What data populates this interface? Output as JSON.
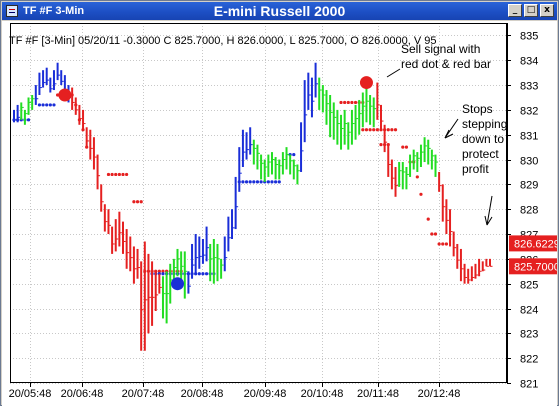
{
  "window": {
    "tab_title": "TF #F 3-Min",
    "chart_title": "E-mini Russell 2000",
    "min_glyph": "_",
    "max_glyph": "□",
    "close_glyph": "x"
  },
  "info_line": "TF #F [3-Min] 05/20/11  -0.3000 C 825.7000, H 826.0000, L 825.7000, O 826.0000, V 95",
  "annotations": {
    "sell_signal": [
      "Sell signal with",
      "red dot & red bar"
    ],
    "stops": [
      "Stops",
      "stepping",
      "down to",
      "protect",
      "profit"
    ]
  },
  "price_tags": [
    {
      "label": "826.6229",
      "value": 826.6229,
      "color": "#e52020"
    },
    {
      "label": "825.7000",
      "value": 825.7,
      "color": "#e52020"
    }
  ],
  "colors": {
    "up": "#22dd22",
    "down": "#e52020",
    "neutral": "#1a2ed8"
  },
  "chart_data": {
    "type": "bar",
    "y_ticks": [
      821,
      822,
      823,
      824,
      825,
      826,
      827,
      828,
      829,
      830,
      831,
      832,
      833,
      834,
      835
    ],
    "ylim": [
      821,
      835.5
    ],
    "x_ticks": [
      "20/05:48",
      "20/06:48",
      "20/07:48",
      "20/08:48",
      "20/09:48",
      "20/10:48",
      "20/11:48",
      "20/12:48"
    ],
    "bars": [
      [
        832.0,
        831.5,
        "n"
      ],
      [
        832.2,
        831.5,
        "n"
      ],
      [
        832.3,
        831.6,
        "g"
      ],
      [
        832.0,
        831.4,
        "g"
      ],
      [
        832.5,
        831.8,
        "g"
      ],
      [
        832.6,
        832.0,
        "g"
      ],
      [
        833.0,
        832.2,
        "b"
      ],
      [
        833.5,
        832.6,
        "b"
      ],
      [
        833.6,
        832.9,
        "b"
      ],
      [
        833.7,
        833.0,
        "b"
      ],
      [
        833.3,
        832.7,
        "b"
      ],
      [
        833.6,
        832.8,
        "b"
      ],
      [
        833.9,
        833.2,
        "b"
      ],
      [
        833.6,
        833.0,
        "b"
      ],
      [
        833.4,
        832.5,
        "b"
      ],
      [
        833.0,
        832.3,
        "b"
      ],
      [
        832.9,
        832.0,
        "r"
      ],
      [
        832.5,
        831.8,
        "r"
      ],
      [
        832.2,
        831.4,
        "r"
      ],
      [
        832.0,
        831.2,
        "r"
      ],
      [
        831.3,
        830.5,
        "r"
      ],
      [
        831.2,
        830.0,
        "r"
      ],
      [
        830.9,
        829.6,
        "r"
      ],
      [
        830.2,
        828.8,
        "r"
      ],
      [
        829.0,
        827.9,
        "r"
      ],
      [
        828.2,
        827.1,
        "r"
      ],
      [
        828.0,
        827.0,
        "r"
      ],
      [
        827.3,
        826.2,
        "r"
      ],
      [
        827.6,
        826.3,
        "r"
      ],
      [
        827.9,
        826.5,
        "r"
      ],
      [
        827.5,
        826.2,
        "r"
      ],
      [
        827.2,
        825.6,
        "r"
      ],
      [
        826.9,
        825.5,
        "r"
      ],
      [
        826.5,
        825.0,
        "r"
      ],
      [
        826.4,
        825.2,
        "r"
      ],
      [
        825.9,
        822.3,
        "r"
      ],
      [
        826.7,
        822.3,
        "r"
      ],
      [
        826.2,
        823.0,
        "r"
      ],
      [
        825.9,
        823.3,
        "r"
      ],
      [
        825.5,
        823.9,
        "r"
      ],
      [
        825.4,
        824.6,
        "r"
      ],
      [
        825.3,
        823.6,
        "g"
      ],
      [
        825.5,
        823.4,
        "g"
      ],
      [
        825.8,
        824.2,
        "g"
      ],
      [
        826.0,
        825.0,
        "g"
      ],
      [
        826.4,
        825.3,
        "g"
      ],
      [
        826.3,
        824.8,
        "g"
      ],
      [
        826.3,
        824.4,
        "g"
      ],
      [
        825.5,
        824.6,
        "b"
      ],
      [
        826.6,
        825.2,
        "b"
      ],
      [
        827.0,
        825.4,
        "b"
      ],
      [
        826.9,
        825.6,
        "b"
      ],
      [
        826.8,
        825.8,
        "b"
      ],
      [
        827.3,
        825.9,
        "b"
      ],
      [
        826.6,
        825.1,
        "g"
      ],
      [
        826.8,
        825.0,
        "g"
      ],
      [
        826.6,
        825.1,
        "g"
      ],
      [
        826.0,
        825.2,
        "g"
      ],
      [
        826.9,
        825.5,
        "b"
      ],
      [
        827.7,
        826.3,
        "b"
      ],
      [
        828.0,
        826.8,
        "b"
      ],
      [
        829.3,
        827.2,
        "b"
      ],
      [
        830.5,
        828.7,
        "b"
      ],
      [
        831.2,
        829.7,
        "b"
      ],
      [
        831.1,
        830.0,
        "b"
      ],
      [
        831.3,
        830.2,
        "b"
      ],
      [
        830.8,
        829.8,
        "g"
      ],
      [
        830.6,
        829.6,
        "g"
      ],
      [
        830.2,
        829.2,
        "g"
      ],
      [
        830.0,
        829.1,
        "g"
      ],
      [
        830.2,
        829.3,
        "g"
      ],
      [
        830.3,
        829.4,
        "g"
      ],
      [
        830.1,
        829.2,
        "g"
      ],
      [
        830.0,
        829.2,
        "g"
      ],
      [
        830.3,
        829.4,
        "g"
      ],
      [
        830.5,
        829.6,
        "g"
      ],
      [
        830.2,
        829.4,
        "g"
      ],
      [
        830.0,
        829.2,
        "g"
      ],
      [
        829.8,
        829.0,
        "g"
      ],
      [
        831.5,
        829.5,
        "b"
      ],
      [
        833.2,
        830.7,
        "b"
      ],
      [
        833.5,
        832.0,
        "b"
      ],
      [
        833.3,
        831.7,
        "b"
      ],
      [
        833.9,
        832.5,
        "b"
      ],
      [
        833.3,
        832.0,
        "g"
      ],
      [
        833.0,
        831.9,
        "g"
      ],
      [
        832.8,
        831.4,
        "g"
      ],
      [
        832.6,
        830.9,
        "g"
      ],
      [
        832.3,
        830.8,
        "g"
      ],
      [
        832.0,
        830.6,
        "g"
      ],
      [
        831.8,
        830.4,
        "g"
      ],
      [
        832.0,
        830.6,
        "g"
      ],
      [
        831.5,
        830.4,
        "g"
      ],
      [
        832.0,
        830.6,
        "g"
      ],
      [
        832.2,
        830.8,
        "g"
      ],
      [
        832.4,
        831.0,
        "g"
      ],
      [
        832.7,
        831.3,
        "g"
      ],
      [
        832.9,
        831.5,
        "g"
      ],
      [
        832.6,
        831.4,
        "g"
      ],
      [
        832.5,
        831.3,
        "g"
      ],
      [
        833.1,
        831.6,
        "r"
      ],
      [
        832.2,
        831.2,
        "r"
      ],
      [
        831.4,
        830.3,
        "r"
      ],
      [
        830.6,
        829.3,
        "r"
      ],
      [
        830.0,
        828.8,
        "r"
      ],
      [
        829.7,
        828.5,
        "r"
      ],
      [
        829.9,
        828.9,
        "g"
      ],
      [
        829.9,
        828.8,
        "g"
      ],
      [
        829.7,
        828.8,
        "g"
      ],
      [
        830.2,
        829.3,
        "g"
      ],
      [
        830.4,
        829.6,
        "g"
      ],
      [
        830.3,
        829.5,
        "g"
      ],
      [
        830.6,
        829.7,
        "g"
      ],
      [
        830.9,
        829.9,
        "g"
      ],
      [
        830.8,
        829.8,
        "g"
      ],
      [
        830.4,
        829.6,
        "g"
      ],
      [
        830.2,
        829.3,
        "g"
      ],
      [
        829.5,
        828.7,
        "r"
      ],
      [
        829.0,
        827.5,
        "r"
      ],
      [
        828.4,
        827.0,
        "r"
      ],
      [
        828.0,
        826.5,
        "r"
      ],
      [
        827.1,
        826.1,
        "r"
      ],
      [
        826.6,
        825.6,
        "r"
      ],
      [
        826.4,
        825.1,
        "r"
      ],
      [
        825.8,
        825.0,
        "r"
      ],
      [
        825.6,
        825.0,
        "r"
      ],
      [
        825.7,
        825.1,
        "r"
      ],
      [
        825.8,
        825.2,
        "r"
      ],
      [
        826.0,
        825.3,
        "r"
      ],
      [
        825.9,
        825.5,
        "r"
      ],
      [
        826.0,
        825.7,
        "r"
      ],
      [
        826.0,
        825.7,
        "r"
      ]
    ],
    "stops": [
      [
        0,
        4,
        831.6,
        "n"
      ],
      [
        7,
        11,
        832.2,
        "n"
      ],
      [
        12,
        16,
        832.6,
        "r"
      ],
      [
        17,
        17,
        832.2,
        "r"
      ],
      [
        18,
        18,
        831.6,
        "r"
      ],
      [
        19,
        19,
        831.2,
        "r"
      ],
      [
        20,
        20,
        830.5,
        "r"
      ],
      [
        26,
        31,
        829.4,
        "r"
      ],
      [
        33,
        35,
        828.3,
        "r"
      ],
      [
        36,
        46,
        825.5,
        "r"
      ],
      [
        38,
        55,
        825.4,
        "n"
      ],
      [
        62,
        73,
        829.1,
        "n"
      ],
      [
        76,
        77,
        830.2,
        "n"
      ],
      [
        90,
        96,
        832.3,
        "r"
      ],
      [
        96,
        105,
        831.2,
        "r"
      ],
      [
        101,
        103,
        830.6,
        "r"
      ],
      [
        107,
        108,
        830.5,
        "r"
      ],
      [
        109,
        110,
        829.9,
        "r"
      ],
      [
        111,
        111,
        829.3,
        "r"
      ],
      [
        112,
        112,
        828.6,
        "r"
      ],
      [
        114,
        114,
        827.6,
        "r"
      ],
      [
        115,
        116,
        827.0,
        "r"
      ],
      [
        117,
        119,
        826.6,
        "r"
      ]
    ],
    "signal_dots": [
      {
        "bar": 14,
        "price": 832.6,
        "color": "#e52020"
      },
      {
        "bar": 45,
        "price": 825.0,
        "color": "#1a2ed8"
      },
      {
        "bar": 97,
        "price": 833.1,
        "color": "#e52020"
      }
    ]
  }
}
